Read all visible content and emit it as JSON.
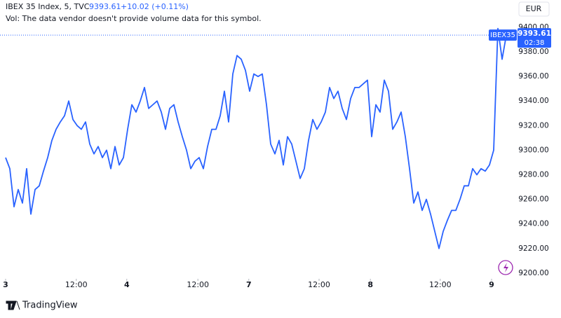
{
  "header": {
    "symbol": "IBEX 35 Index, 5, TVC",
    "price": "9393.61",
    "change": "+10.02 (+0.11%)",
    "volume_note": "Vol: The data vendor doesn't provide volume data for this symbol."
  },
  "currency": "EUR",
  "price_tag": {
    "symbol": "IBEX35",
    "countdown": "02:38"
  },
  "brand": "TradingView",
  "chart_data": {
    "type": "line",
    "color": "#2962ff",
    "values": [
      9294,
      9285,
      9254,
      9268,
      9257,
      9285,
      9248,
      9268,
      9271,
      9283,
      9294,
      9308,
      9317,
      9323,
      9328,
      9340,
      9325,
      9320,
      9317,
      9323,
      9305,
      9297,
      9303,
      9294,
      9300,
      9285,
      9303,
      9288,
      9294,
      9317,
      9337,
      9331,
      9340,
      9351,
      9334,
      9337,
      9340,
      9331,
      9317,
      9334,
      9337,
      9323,
      9311,
      9300,
      9285,
      9291,
      9294,
      9285,
      9303,
      9317,
      9317,
      9328,
      9348,
      9323,
      9362,
      9377,
      9374,
      9365,
      9348,
      9362,
      9360,
      9362,
      9337,
      9305,
      9297,
      9308,
      9288,
      9311,
      9305,
      9291,
      9277,
      9285,
      9308,
      9325,
      9317,
      9323,
      9331,
      9351,
      9342,
      9348,
      9334,
      9325,
      9342,
      9351,
      9351,
      9354,
      9357,
      9311,
      9337,
      9331,
      9357,
      9348,
      9317,
      9323,
      9331,
      9311,
      9285,
      9257,
      9266,
      9251,
      9260,
      9248,
      9234,
      9220,
      9234,
      9243,
      9251,
      9251,
      9260,
      9271,
      9271,
      9285,
      9280,
      9285,
      9283,
      9288,
      9300,
      9399,
      9374,
      9393.61
    ],
    "xlim": [
      -1.33,
      122
    ],
    "xticks": [
      {
        "value": 0,
        "label": "3"
      },
      {
        "value": 16.8,
        "label": "12:00"
      },
      {
        "value": 28.8,
        "label": "4"
      },
      {
        "value": 45.7,
        "label": "12:00"
      },
      {
        "value": 57.8,
        "label": "7"
      },
      {
        "value": 74.5,
        "label": "12:00"
      },
      {
        "value": 86.7,
        "label": "8"
      },
      {
        "value": 103.3,
        "label": "12:00"
      },
      {
        "value": 115.5,
        "label": "9"
      }
    ],
    "ylim": [
      9195.4,
      9422.2
    ],
    "yticks": [
      {
        "value": 9200,
        "label": "9200.00"
      },
      {
        "value": 9220,
        "label": "9220.00"
      },
      {
        "value": 9240,
        "label": "9240.00"
      },
      {
        "value": 9260,
        "label": "9260.00"
      },
      {
        "value": 9280,
        "label": "9280.00"
      },
      {
        "value": 9300,
        "label": "9300.00"
      },
      {
        "value": 9320,
        "label": "9320.00"
      },
      {
        "value": 9340,
        "label": "9340.00"
      },
      {
        "value": 9360,
        "label": "9360.00"
      },
      {
        "value": 9380,
        "label": "9380.00"
      },
      {
        "value": 9400,
        "label": "9400.00"
      }
    ]
  }
}
